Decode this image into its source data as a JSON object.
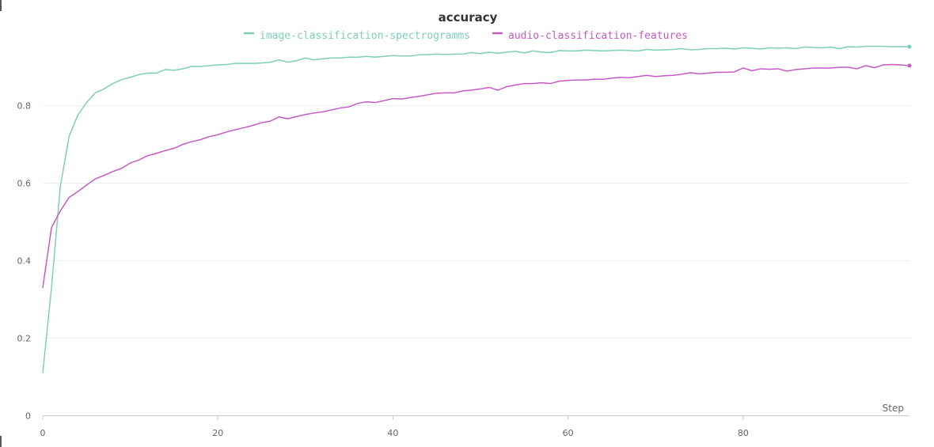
{
  "chart_data": {
    "type": "line",
    "title": "accuracy",
    "xlabel": "Step",
    "ylabel": "",
    "xlim": [
      0,
      99
    ],
    "ylim": [
      0,
      1.0
    ],
    "x_ticks": [
      0,
      20,
      40,
      60,
      80
    ],
    "y_ticks": [
      0,
      0.2,
      0.4,
      0.6,
      0.8
    ],
    "y_tick_labels": [
      "0",
      "0.2",
      "0.4",
      "0.6",
      "0.8"
    ],
    "grid": true,
    "legend_position": "top-center",
    "series": [
      {
        "name": "image-classification-spectrogramms",
        "color": "#7fcfb6",
        "values": [
          0.11,
          0.33,
          0.59,
          0.72,
          0.775,
          0.808,
          0.833,
          0.843,
          0.857,
          0.867,
          0.873,
          0.88,
          0.884,
          0.884,
          0.893,
          0.891,
          0.895,
          0.901,
          0.901,
          0.903,
          0.905,
          0.906,
          0.909,
          0.909,
          0.909,
          0.91,
          0.912,
          0.918,
          0.912,
          0.916,
          0.923,
          0.918,
          0.921,
          0.923,
          0.923,
          0.925,
          0.925,
          0.927,
          0.925,
          0.927,
          0.929,
          0.928,
          0.928,
          0.931,
          0.932,
          0.933,
          0.932,
          0.933,
          0.933,
          0.937,
          0.934,
          0.938,
          0.935,
          0.938,
          0.94,
          0.936,
          0.941,
          0.938,
          0.937,
          0.942,
          0.941,
          0.941,
          0.943,
          0.942,
          0.941,
          0.942,
          0.943,
          0.942,
          0.941,
          0.945,
          0.943,
          0.944,
          0.945,
          0.947,
          0.944,
          0.945,
          0.947,
          0.947,
          0.948,
          0.946,
          0.949,
          0.948,
          0.946,
          0.949,
          0.948,
          0.949,
          0.947,
          0.951,
          0.95,
          0.949,
          0.951,
          0.947,
          0.952,
          0.951,
          0.953,
          0.953,
          0.953,
          0.952,
          0.952,
          0.952
        ]
      },
      {
        "name": "audio-classification-features",
        "color": "#c45bc4",
        "values": [
          0.33,
          0.485,
          0.528,
          0.563,
          0.578,
          0.595,
          0.611,
          0.62,
          0.63,
          0.638,
          0.652,
          0.66,
          0.671,
          0.677,
          0.684,
          0.69,
          0.7,
          0.707,
          0.712,
          0.72,
          0.725,
          0.732,
          0.738,
          0.743,
          0.749,
          0.756,
          0.76,
          0.771,
          0.766,
          0.772,
          0.777,
          0.781,
          0.784,
          0.789,
          0.794,
          0.797,
          0.806,
          0.81,
          0.808,
          0.813,
          0.818,
          0.817,
          0.821,
          0.824,
          0.828,
          0.832,
          0.833,
          0.833,
          0.838,
          0.84,
          0.843,
          0.847,
          0.84,
          0.849,
          0.853,
          0.857,
          0.857,
          0.859,
          0.857,
          0.863,
          0.865,
          0.866,
          0.866,
          0.868,
          0.868,
          0.871,
          0.873,
          0.872,
          0.875,
          0.878,
          0.875,
          0.877,
          0.878,
          0.881,
          0.885,
          0.882,
          0.884,
          0.886,
          0.886,
          0.887,
          0.897,
          0.89,
          0.895,
          0.894,
          0.895,
          0.889,
          0.893,
          0.895,
          0.897,
          0.897,
          0.897,
          0.899,
          0.899,
          0.895,
          0.903,
          0.898,
          0.905,
          0.906,
          0.905,
          0.903
        ]
      }
    ]
  }
}
